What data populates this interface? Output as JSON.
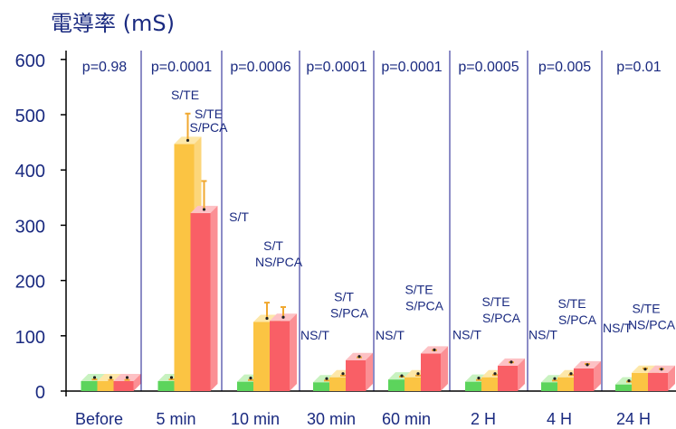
{
  "chart_data": {
    "type": "bar",
    "title": "電導率 (mS)",
    "xlabel": "",
    "ylabel": "",
    "ylim": [
      0,
      600
    ],
    "yticks": [
      "0",
      "100",
      "200",
      "300",
      "400",
      "500",
      "600"
    ],
    "grid": false,
    "categories": [
      "Before",
      "5 min",
      "10 min",
      "30 min",
      "60 min",
      "2 H",
      "4 H",
      "24 H"
    ],
    "p_values": [
      "p=0.98",
      "p=0.0001",
      "p=0.0006",
      "p=0.0001",
      "p=0.0001",
      "p=0.0005",
      "p=0.005",
      "p=0.01"
    ],
    "series": [
      {
        "values": [
          18,
          18,
          17,
          16,
          21,
          17,
          16,
          12
        ],
        "errors": [
          3,
          3,
          3,
          3,
          5,
          3,
          3,
          5
        ]
      },
      {
        "values": [
          18,
          447,
          125,
          25,
          25,
          25,
          25,
          33
        ],
        "errors": [
          2,
          55,
          35,
          3,
          3,
          4,
          4,
          8
        ]
      },
      {
        "values": [
          18,
          322,
          127,
          56,
          68,
          46,
          41,
          33
        ],
        "errors": [
          2,
          58,
          25,
          5,
          6,
          6,
          8,
          7
        ]
      }
    ],
    "annotations": [
      [],
      [
        "S/TE",
        "S/TE",
        "S/PCA"
      ],
      [
        "S/T",
        "S/T",
        "NS/PCA"
      ],
      [
        "NS/T",
        "S/T",
        "S/PCA"
      ],
      [
        "NS/T",
        "S/TE",
        "S/PCA"
      ],
      [
        "NS/T",
        "S/TE",
        "S/PCA"
      ],
      [
        "NS/T",
        "S/TE",
        "S/PCA"
      ],
      [
        "NS/T",
        "S/TE",
        "NS/PCA"
      ]
    ]
  },
  "colors": {
    "axis": "#000000",
    "divider": "#1a1a8c",
    "text": "#1a2a80",
    "green_front": "#5cd45c",
    "green_top": "#c8f2c0",
    "green_side": "#9de89a",
    "yellow_front": "#fbc443",
    "yellow_top": "#fde7a8",
    "yellow_side": "#fcd67a",
    "red_front": "#f95f66",
    "red_top": "#fdc1c4",
    "red_side": "#fb8f94",
    "error_bar": "#f0a830"
  }
}
